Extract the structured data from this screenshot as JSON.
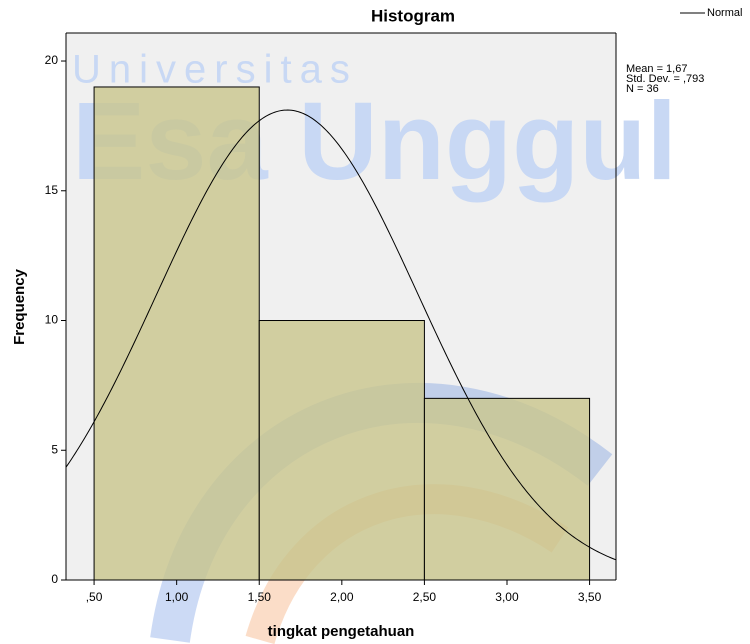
{
  "chart_data": {
    "type": "histogram",
    "title": "Histogram",
    "x_label": "tingkat pengetahuan",
    "y_label": "Frequency",
    "bins": [
      0.5,
      1.5,
      2.5,
      3.5
    ],
    "counts": [
      19,
      10,
      7
    ],
    "color": "#c9c58c",
    "xlim": [
      0.33,
      3.66
    ],
    "ylim": [
      0,
      21.08
    ],
    "xticks": [
      {
        "value": 0.5,
        "label": ",50"
      },
      {
        "value": 1,
        "label": "1,00"
      },
      {
        "value": 1.5,
        "label": "1,50"
      },
      {
        "value": 2,
        "label": "2,00"
      },
      {
        "value": 2.5,
        "label": "2,50"
      },
      {
        "value": 3,
        "label": "3,00"
      },
      {
        "value": 3.5,
        "label": "3,50"
      }
    ],
    "yticks": [
      0,
      5,
      10,
      15,
      20
    ],
    "normal_curve": {
      "name": "Normal",
      "mean": 1.67,
      "std_dev": 0.793,
      "n": 36,
      "labels": [
        "Mean = 1,67",
        "Std. Dev. = ,793",
        "N = 36"
      ]
    },
    "watermark": [
      "Universitas",
      "Esa Unggul"
    ]
  }
}
